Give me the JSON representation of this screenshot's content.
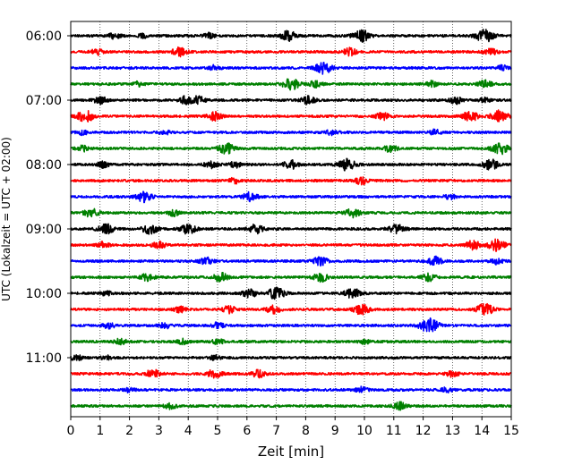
{
  "chart_data": {
    "type": "line",
    "title": "",
    "xlabel": "Zeit  [min]",
    "ylabel": "UTC (Lokalzeit = UTC + 02:00)",
    "xlim": [
      0,
      15
    ],
    "x_ticks": [
      "0",
      "1",
      "2",
      "3",
      "4",
      "5",
      "6",
      "7",
      "8",
      "9",
      "10",
      "11",
      "12",
      "13",
      "14",
      "15"
    ],
    "y_ticks": [
      "06:00",
      "07:00",
      "08:00",
      "09:00",
      "10:00",
      "11:00"
    ],
    "grid": "vertical dotted lines at each minute",
    "series_colors": [
      "#000000",
      "#ff0000",
      "#0000ff",
      "#008000"
    ],
    "traces": [
      {
        "start": "06:00",
        "color": "#000000",
        "events": [
          [
            1.5,
            0.4
          ],
          [
            2.5,
            0.3
          ],
          [
            4.7,
            0.35
          ],
          [
            7.4,
            0.7
          ],
          [
            9.9,
            0.8
          ],
          [
            14.1,
            0.9
          ]
        ]
      },
      {
        "start": "06:15",
        "color": "#ff0000",
        "events": [
          [
            0.9,
            0.4
          ],
          [
            3.7,
            0.6
          ],
          [
            9.5,
            0.5
          ],
          [
            14.3,
            0.5
          ]
        ]
      },
      {
        "start": "06:30",
        "color": "#0000ff",
        "events": [
          [
            4.9,
            0.35
          ],
          [
            8.6,
            0.8
          ],
          [
            14.7,
            0.35
          ]
        ]
      },
      {
        "start": "06:45",
        "color": "#008000",
        "events": [
          [
            2.3,
            0.3
          ],
          [
            7.5,
            0.8
          ],
          [
            8.3,
            0.5
          ],
          [
            12.3,
            0.4
          ],
          [
            14.1,
            0.5
          ]
        ]
      },
      {
        "start": "07:00",
        "color": "#000000",
        "events": [
          [
            1.0,
            0.5
          ],
          [
            3.9,
            0.5
          ],
          [
            4.3,
            0.6
          ],
          [
            8.1,
            0.6
          ],
          [
            13.1,
            0.5
          ],
          [
            14.1,
            0.3
          ]
        ]
      },
      {
        "start": "07:15",
        "color": "#ff0000",
        "events": [
          [
            0.5,
            0.8
          ],
          [
            4.9,
            0.6
          ],
          [
            10.6,
            0.5
          ],
          [
            13.6,
            0.7
          ],
          [
            14.6,
            0.8
          ]
        ]
      },
      {
        "start": "07:30",
        "color": "#0000ff",
        "events": [
          [
            0.4,
            0.3
          ],
          [
            3.2,
            0.3
          ],
          [
            8.9,
            0.4
          ],
          [
            12.4,
            0.35
          ]
        ]
      },
      {
        "start": "07:45",
        "color": "#008000",
        "events": [
          [
            0.4,
            0.4
          ],
          [
            5.3,
            0.7
          ],
          [
            10.9,
            0.5
          ],
          [
            14.6,
            0.8
          ]
        ]
      },
      {
        "start": "08:00",
        "color": "#000000",
        "events": [
          [
            1.1,
            0.4
          ],
          [
            4.8,
            0.5
          ],
          [
            5.6,
            0.4
          ],
          [
            7.5,
            0.6
          ],
          [
            9.4,
            0.8
          ],
          [
            14.3,
            0.7
          ]
        ]
      },
      {
        "start": "08:15",
        "color": "#ff0000",
        "events": [
          [
            5.6,
            0.4
          ],
          [
            9.9,
            0.5
          ]
        ]
      },
      {
        "start": "08:30",
        "color": "#0000ff",
        "events": [
          [
            2.5,
            0.7
          ],
          [
            6.1,
            0.6
          ],
          [
            12.9,
            0.35
          ]
        ]
      },
      {
        "start": "08:45",
        "color": "#008000",
        "events": [
          [
            0.7,
            0.6
          ],
          [
            3.5,
            0.4
          ],
          [
            9.6,
            0.6
          ]
        ]
      },
      {
        "start": "09:00",
        "color": "#000000",
        "events": [
          [
            1.2,
            0.7
          ],
          [
            2.7,
            0.7
          ],
          [
            4.0,
            0.7
          ],
          [
            6.3,
            0.6
          ],
          [
            11.1,
            0.7
          ]
        ]
      },
      {
        "start": "09:15",
        "color": "#ff0000",
        "events": [
          [
            1.1,
            0.4
          ],
          [
            3.0,
            0.5
          ],
          [
            13.7,
            0.6
          ],
          [
            14.5,
            0.8
          ]
        ]
      },
      {
        "start": "09:30",
        "color": "#0000ff",
        "events": [
          [
            4.6,
            0.5
          ],
          [
            8.5,
            0.6
          ],
          [
            12.4,
            0.6
          ],
          [
            14.5,
            0.4
          ]
        ]
      },
      {
        "start": "09:45",
        "color": "#008000",
        "events": [
          [
            2.6,
            0.5
          ],
          [
            5.1,
            0.6
          ],
          [
            8.5,
            0.6
          ],
          [
            12.2,
            0.5
          ]
        ]
      },
      {
        "start": "10:00",
        "color": "#000000",
        "events": [
          [
            1.2,
            0.3
          ],
          [
            6.1,
            0.6
          ],
          [
            7.0,
            0.8
          ],
          [
            9.6,
            0.7
          ]
        ]
      },
      {
        "start": "10:15",
        "color": "#ff0000",
        "events": [
          [
            3.7,
            0.4
          ],
          [
            5.4,
            0.5
          ],
          [
            6.9,
            0.6
          ],
          [
            9.9,
            0.7
          ],
          [
            14.1,
            0.8
          ]
        ]
      },
      {
        "start": "10:30",
        "color": "#0000ff",
        "events": [
          [
            1.3,
            0.4
          ],
          [
            3.2,
            0.4
          ],
          [
            5.0,
            0.4
          ],
          [
            12.2,
            1.0
          ]
        ]
      },
      {
        "start": "10:45",
        "color": "#008000",
        "events": [
          [
            1.7,
            0.4
          ],
          [
            3.8,
            0.4
          ],
          [
            5.0,
            0.4
          ],
          [
            10.0,
            0.3
          ]
        ]
      },
      {
        "start": "11:00",
        "color": "#000000",
        "events": [
          [
            0.2,
            0.4
          ],
          [
            1.2,
            0.3
          ],
          [
            4.9,
            0.3
          ]
        ]
      },
      {
        "start": "11:15",
        "color": "#ff0000",
        "events": [
          [
            2.8,
            0.6
          ],
          [
            4.9,
            0.6
          ],
          [
            6.4,
            0.5
          ],
          [
            13.0,
            0.4
          ]
        ]
      },
      {
        "start": "11:30",
        "color": "#0000ff",
        "events": [
          [
            2.0,
            0.3
          ],
          [
            9.9,
            0.4
          ],
          [
            12.8,
            0.3
          ]
        ]
      },
      {
        "start": "11:45",
        "color": "#008000",
        "events": [
          [
            3.4,
            0.4
          ],
          [
            11.2,
            0.5
          ]
        ]
      }
    ]
  }
}
